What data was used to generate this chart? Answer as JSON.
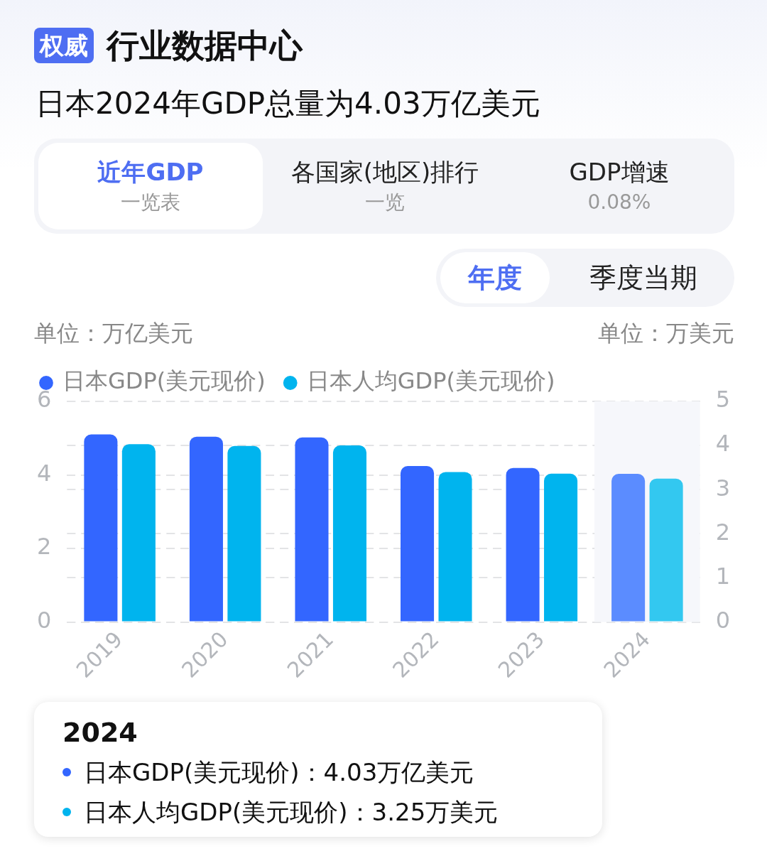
{
  "chart_data": {
    "type": "bar",
    "title": "日本2024年GDP总量为4.03万亿美元",
    "ylabel": "单位：万亿美元",
    "y2label": "单位：万美元",
    "categories": [
      "2019",
      "2020",
      "2021",
      "2022",
      "2023",
      "2024"
    ],
    "series": [
      {
        "name": "日本GDP(美元现价)",
        "color": "#3366ff",
        "colors": [
          "#3366ff",
          "#3366ff",
          "#3366ff",
          "#3366ff",
          "#3366ff",
          "#5b8cff"
        ],
        "values": [
          5.1,
          5.04,
          5.02,
          4.24,
          4.19,
          4.03
        ]
      },
      {
        "name": "日本人均GDP(美元现价)",
        "color": "#00b4ee",
        "colors": [
          "#00b4ee",
          "#00b4ee",
          "#00b4ee",
          "#00b4ee",
          "#00b4ee",
          "#33c8f0"
        ],
        "values": [
          4.03,
          3.99,
          4.0,
          3.4,
          3.36,
          3.25
        ],
        "axis": "y2"
      }
    ],
    "ylim": [
      0,
      6
    ],
    "yticks": [
      0,
      2,
      4,
      6
    ],
    "y2lim": [
      0,
      5
    ],
    "y2ticks": [
      0,
      1,
      2,
      3,
      4,
      5
    ],
    "grid": "y",
    "legend": "top left",
    "bands": [
      {
        "axis": "x",
        "from": "2024",
        "to": "2024",
        "color": "#f6f7fb"
      }
    ],
    "annotations": [
      "权威",
      "行业数据中心",
      "近年GDP",
      "一览表",
      "各国家(地区)排行",
      "一览",
      "GDP增速",
      "0.08%",
      "年度",
      "季度当期",
      "2024",
      "日本GDP(美元现价)：4.03万亿美元",
      "日本人均GDP(美元现价)：3.25万美元"
    ]
  }
}
